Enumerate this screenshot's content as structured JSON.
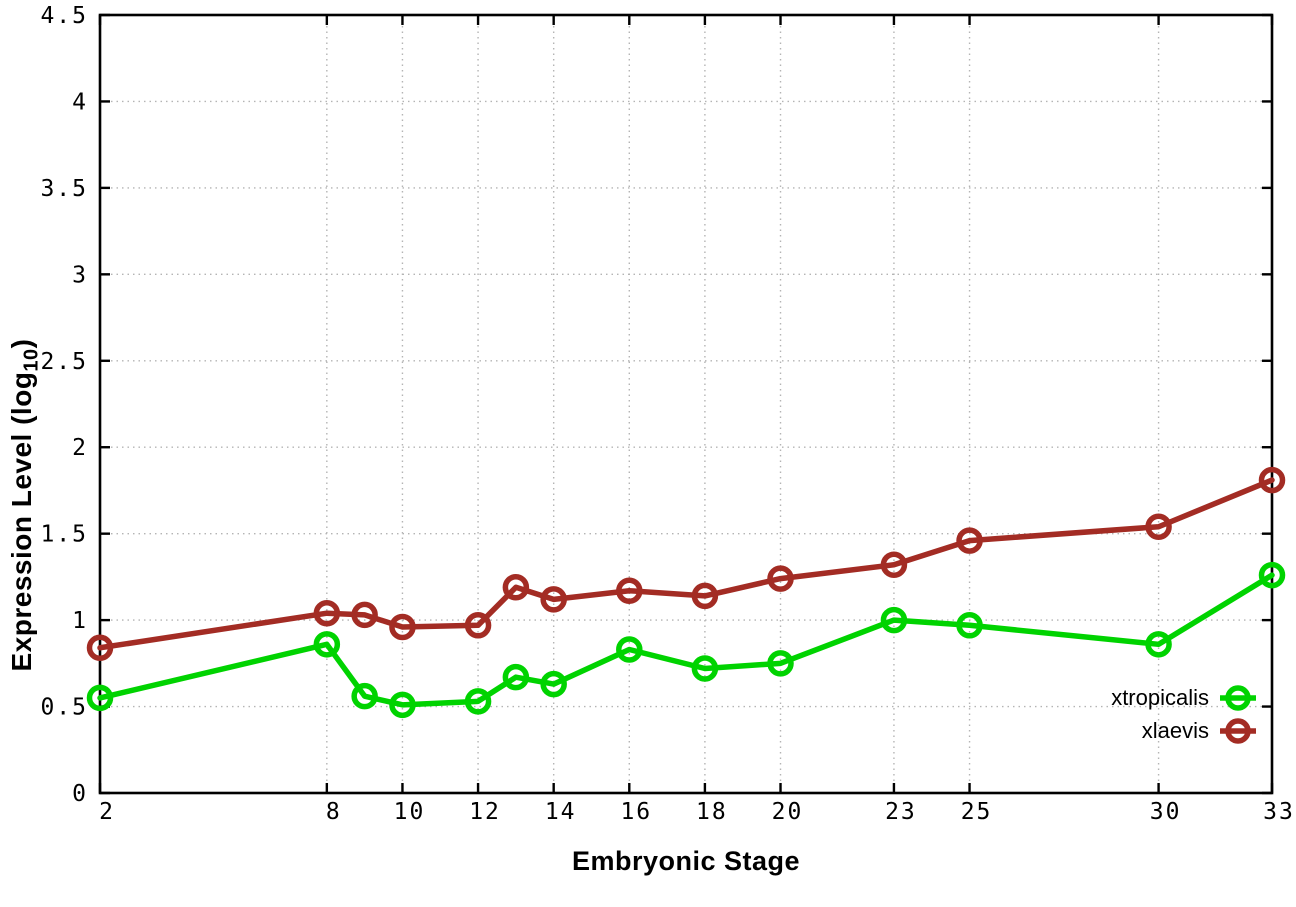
{
  "page": {
    "background": "#ffffff"
  },
  "chart_data": {
    "type": "line",
    "title": "",
    "xlabel": "Embryonic Stage",
    "ylabel": {
      "pre": "Expression Level (log",
      "sub": "10",
      "post": ")"
    },
    "x": [
      2,
      8,
      9,
      10,
      12,
      13,
      14,
      16,
      18,
      20,
      23,
      25,
      30,
      33
    ],
    "series": [
      {
        "name": "xtropicalis",
        "color": "#00d300",
        "values": [
          0.55,
          0.86,
          0.56,
          0.51,
          0.53,
          0.67,
          0.63,
          0.83,
          0.72,
          0.75,
          1.0,
          0.97,
          0.86,
          1.26
        ]
      },
      {
        "name": "xlaevis",
        "color": "#a32c24",
        "values": [
          0.84,
          1.04,
          1.03,
          0.96,
          0.97,
          1.19,
          1.12,
          1.17,
          1.14,
          1.24,
          1.32,
          1.46,
          1.54,
          1.81
        ]
      }
    ],
    "xticks": [
      {
        "value": 2,
        "label": "2"
      },
      {
        "value": 8,
        "label": "8"
      },
      {
        "value": 10,
        "label": "10"
      },
      {
        "value": 12,
        "label": "12"
      },
      {
        "value": 14,
        "label": "14"
      },
      {
        "value": 16,
        "label": "16"
      },
      {
        "value": 18,
        "label": "18"
      },
      {
        "value": 20,
        "label": "20"
      },
      {
        "value": 23,
        "label": "23"
      },
      {
        "value": 25,
        "label": "25"
      },
      {
        "value": 30,
        "label": "30"
      },
      {
        "value": 33,
        "label": "33"
      }
    ],
    "yticks": [
      {
        "value": 0,
        "label": "0"
      },
      {
        "value": 0.5,
        "label": "0.5"
      },
      {
        "value": 1,
        "label": "1"
      },
      {
        "value": 1.5,
        "label": "1.5"
      },
      {
        "value": 2,
        "label": "2"
      },
      {
        "value": 2.5,
        "label": "2.5"
      },
      {
        "value": 3,
        "label": "3"
      },
      {
        "value": 3.5,
        "label": "3.5"
      },
      {
        "value": 4,
        "label": "4"
      },
      {
        "value": 4.5,
        "label": "4.5"
      }
    ],
    "xlim": [
      2,
      33
    ],
    "ylim": [
      0,
      4.5
    ],
    "grid": true,
    "legend_position": "inside-bottom-right",
    "axis_color": "#000000",
    "grid_color": "#b4b4b4"
  }
}
